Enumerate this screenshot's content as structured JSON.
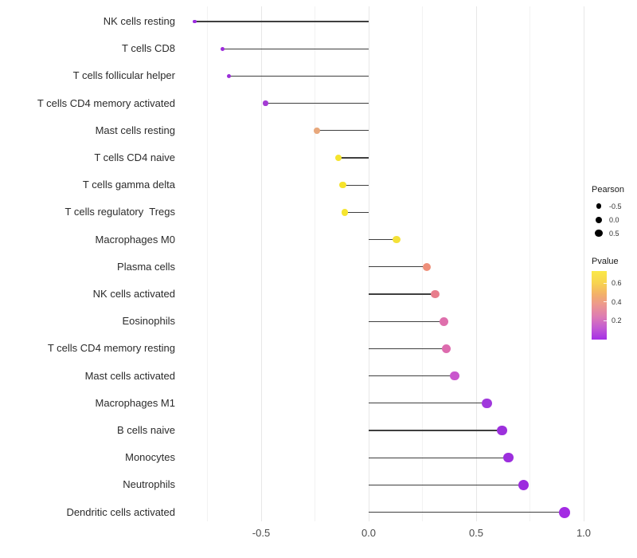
{
  "figure": {
    "background": "#ffffff"
  },
  "chart_data": {
    "type": "lollipop",
    "orientation": "horizontal",
    "title": "",
    "xlabel": "",
    "ylabel": "",
    "x_axis": {
      "ticks": [
        -0.5,
        0.0,
        0.5,
        1.0
      ],
      "tick_labels": [
        "-0.5",
        "0.0",
        "0.5",
        "1.0"
      ],
      "minor_gridlines": [
        -0.75,
        -0.25,
        0.25,
        0.75
      ],
      "xlim": [
        -0.87,
        1.03
      ],
      "baseline": 0.0
    },
    "grid": "vertical gridlines only, light grey on white",
    "points": [
      {
        "label": "NK cells resting",
        "pearson": -0.81,
        "pvalue": 0.05,
        "color": "#9C2BDF"
      },
      {
        "label": "T cells CD8",
        "pearson": -0.68,
        "pvalue": 0.05,
        "color": "#9D2BDB"
      },
      {
        "label": "T cells follicular helper",
        "pearson": -0.65,
        "pvalue": 0.06,
        "color": "#9A2ED8"
      },
      {
        "label": "T cells CD4 memory activated",
        "pearson": -0.48,
        "pvalue": 0.09,
        "color": "#A43BD4"
      },
      {
        "label": "Mast cells resting",
        "pearson": -0.24,
        "pvalue": 0.48,
        "color": "#E8A87C"
      },
      {
        "label": "T cells CD4 naive",
        "pearson": -0.14,
        "pvalue": 0.65,
        "color": "#F5E42E"
      },
      {
        "label": "T cells gamma delta",
        "pearson": -0.12,
        "pvalue": 0.67,
        "color": "#F6E32C"
      },
      {
        "label": "T cells regulatory  Tregs",
        "pearson": -0.11,
        "pvalue": 0.68,
        "color": "#F6E52F"
      },
      {
        "label": "Macrophages M0",
        "pearson": 0.13,
        "pvalue": 0.62,
        "color": "#F4E138"
      },
      {
        "label": "Plasma cells",
        "pearson": 0.27,
        "pvalue": 0.42,
        "color": "#EE8F7A"
      },
      {
        "label": "NK cells activated",
        "pearson": 0.31,
        "pvalue": 0.38,
        "color": "#E87D8C"
      },
      {
        "label": "Eosinophils",
        "pearson": 0.35,
        "pvalue": 0.31,
        "color": "#DE6FAC"
      },
      {
        "label": "T cells CD4 memory resting",
        "pearson": 0.36,
        "pvalue": 0.3,
        "color": "#DD6BAE"
      },
      {
        "label": "Mast cells activated",
        "pearson": 0.4,
        "pvalue": 0.22,
        "color": "#C957CD"
      },
      {
        "label": "Macrophages M1",
        "pearson": 0.55,
        "pvalue": 0.1,
        "color": "#A038DC"
      },
      {
        "label": "B cells naive",
        "pearson": 0.62,
        "pvalue": 0.07,
        "color": "#9C30DC"
      },
      {
        "label": "Monocytes",
        "pearson": 0.65,
        "pvalue": 0.06,
        "color": "#9C2EDD"
      },
      {
        "label": "Neutrophils",
        "pearson": 0.72,
        "pvalue": 0.04,
        "color": "#9C2BDE"
      },
      {
        "label": "Dendritic cells activated",
        "pearson": 0.91,
        "pvalue": 0.02,
        "color": "#A32BE3"
      }
    ],
    "legend": {
      "size": {
        "title": "Pearson",
        "dot_color": "#000000",
        "entries": [
          {
            "label": "-0.5",
            "diameter": 6.5
          },
          {
            "label": "0.0",
            "diameter": 8
          },
          {
            "label": "0.5",
            "diameter": 9.5
          }
        ]
      },
      "color": {
        "title": "Pvalue",
        "tick_labels": [
          "0.6",
          "0.4",
          "0.2"
        ],
        "tick_values": [
          0.6,
          0.4,
          0.2
        ],
        "domain": [
          0.0,
          0.73
        ],
        "gradient_top_to_bottom": [
          "#FAE947",
          "#F8D44F",
          "#F3B267",
          "#EC9690",
          "#DD7BB4",
          "#C35BD2",
          "#A52FE6"
        ]
      }
    },
    "stem_color": "#3F3F3F"
  }
}
